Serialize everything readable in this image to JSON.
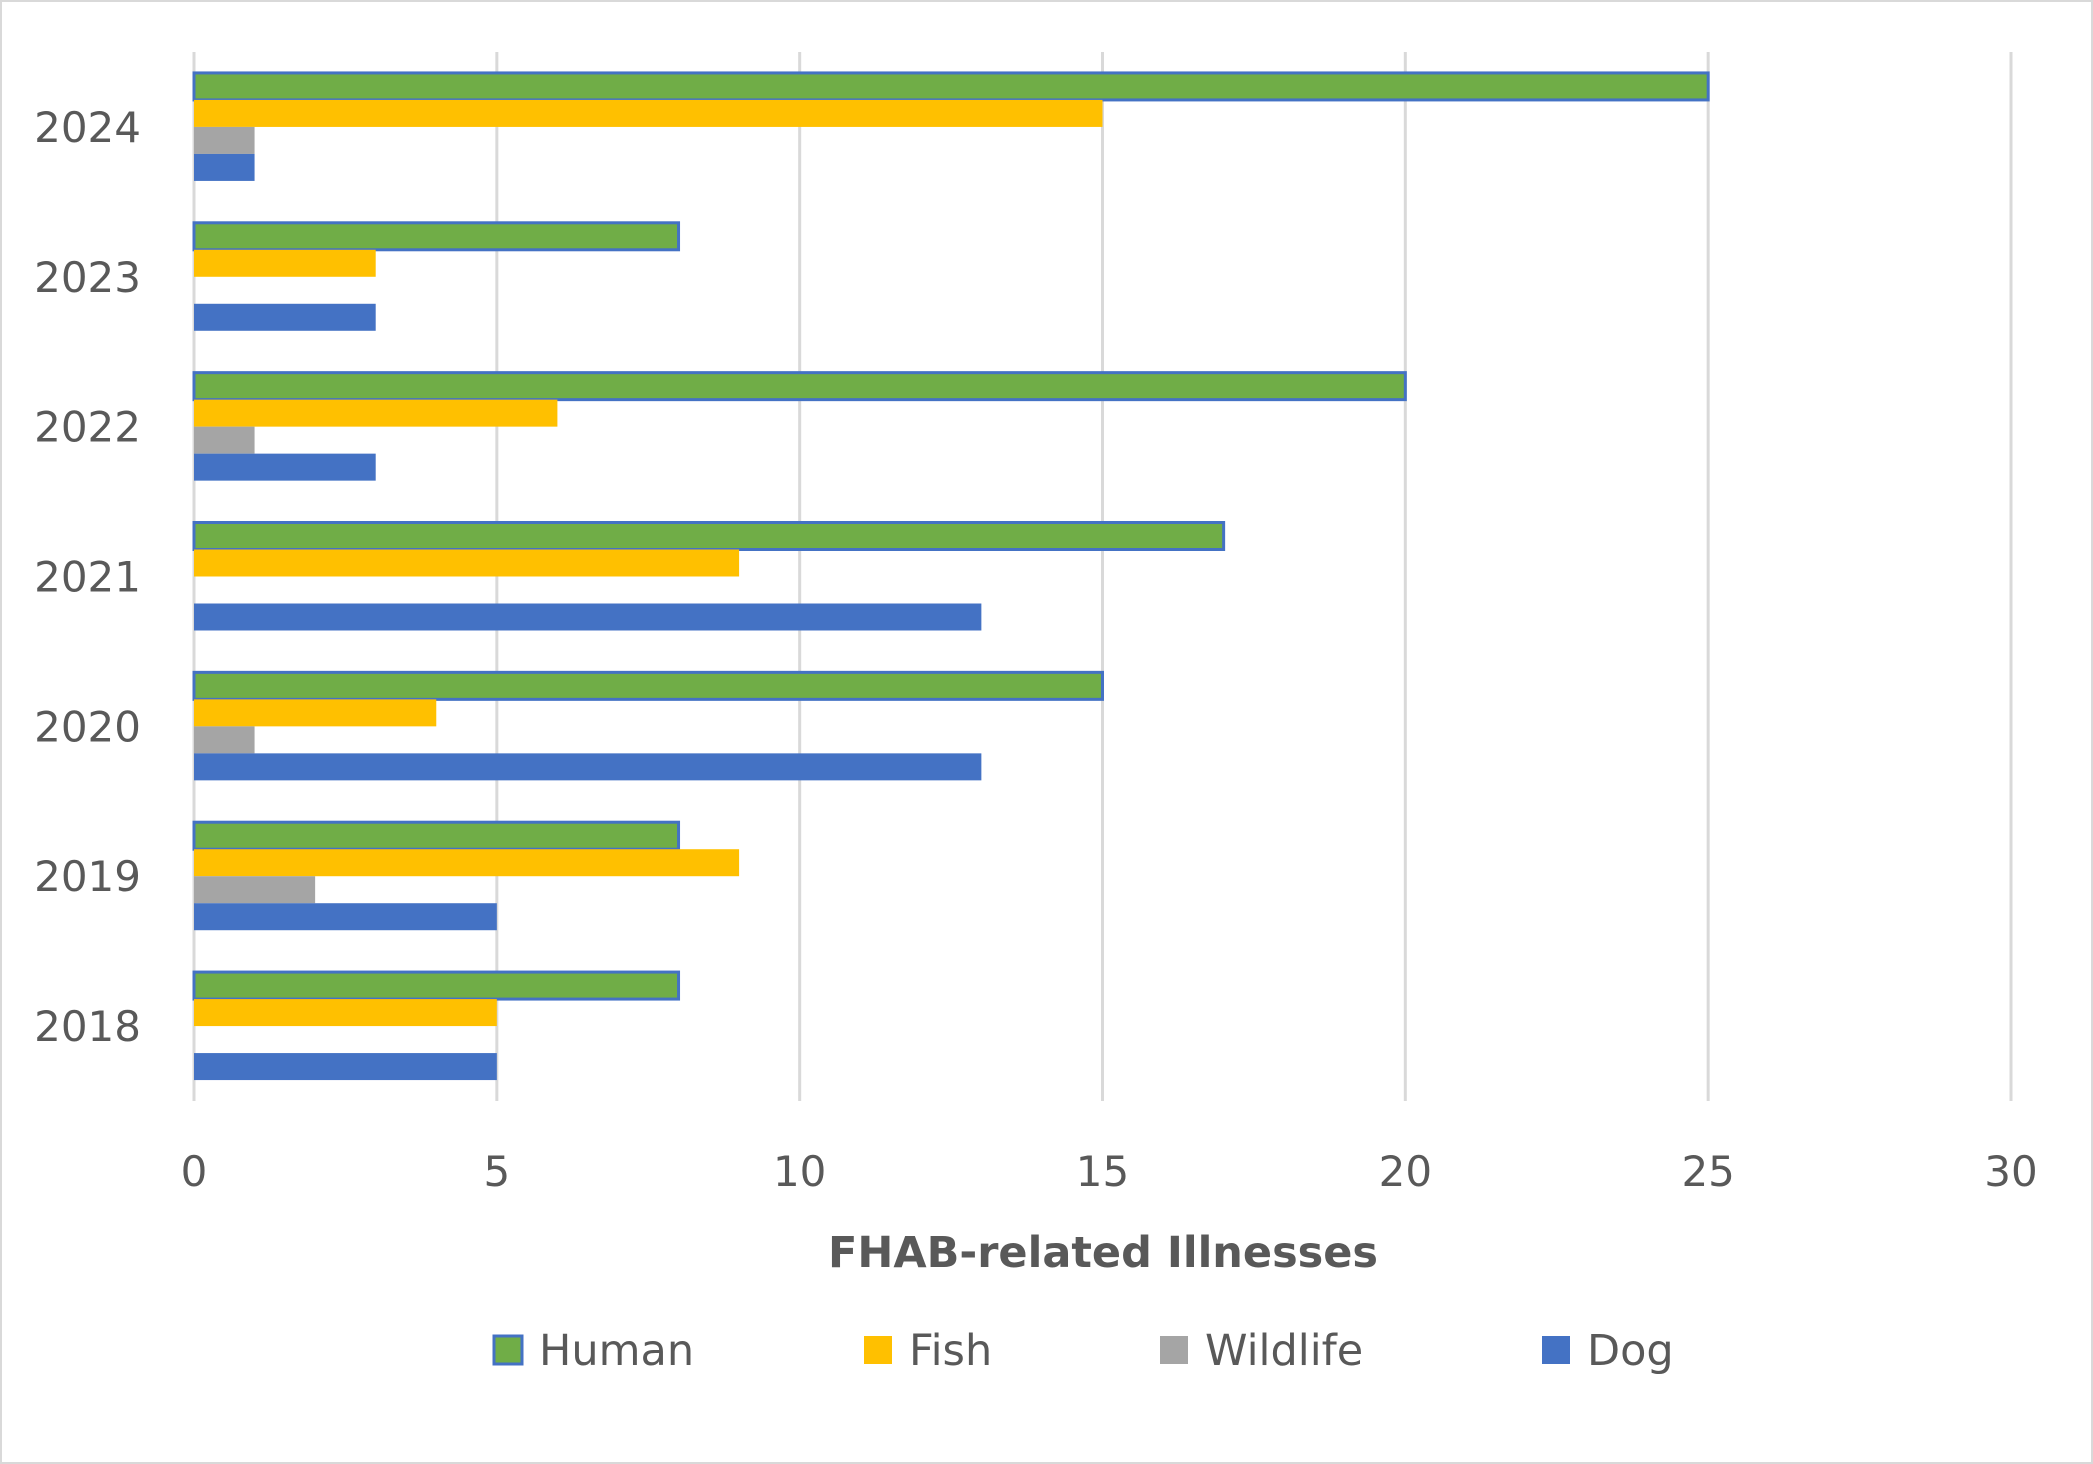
{
  "chart_data": {
    "type": "bar",
    "orientation": "horizontal",
    "title": "",
    "xlabel": "FHAB-related Illnesses",
    "ylabel": "",
    "xlim": [
      0,
      30
    ],
    "xticks": [
      0,
      5,
      10,
      15,
      20,
      25,
      30
    ],
    "grid": true,
    "legend_position": "bottom",
    "categories": [
      "2024",
      "2023",
      "2022",
      "2021",
      "2020",
      "2019",
      "2018"
    ],
    "series": [
      {
        "name": "Human",
        "color": "#70AD47",
        "values": [
          25,
          8,
          20,
          17,
          15,
          8,
          8
        ]
      },
      {
        "name": "Fish",
        "color": "#FFC000",
        "values": [
          15,
          3,
          6,
          9,
          4,
          9,
          5
        ]
      },
      {
        "name": "Wildlife",
        "color": "#A5A5A5",
        "values": [
          1,
          0,
          1,
          0,
          1,
          2,
          0
        ]
      },
      {
        "name": "Dog",
        "color": "#4472C4",
        "values": [
          1,
          3,
          3,
          13,
          13,
          5,
          5
        ]
      }
    ]
  }
}
